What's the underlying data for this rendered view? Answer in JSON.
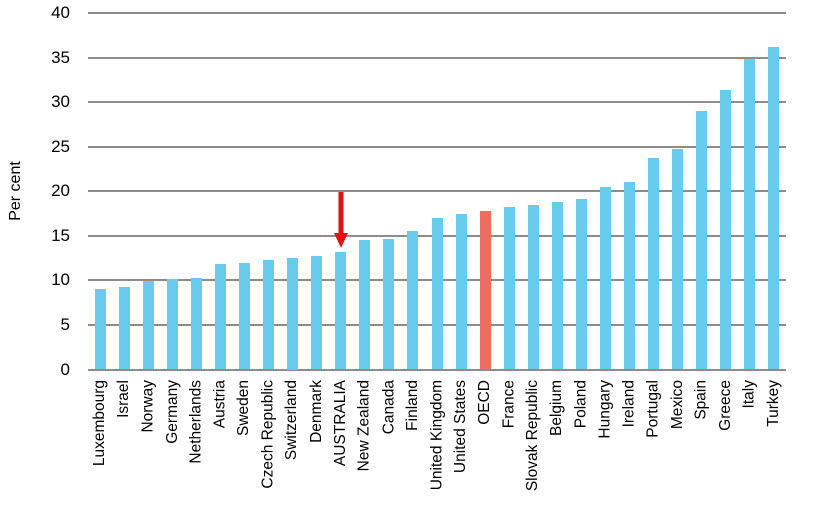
{
  "chart_data": {
    "type": "bar",
    "title": "",
    "xlabel": "",
    "ylabel": "Per cent",
    "ylim": [
      0,
      40
    ],
    "yticks": [
      0,
      5,
      10,
      15,
      20,
      25,
      30,
      35,
      40
    ],
    "grid": "horizontal-gridlines",
    "legend": "none",
    "categories": [
      "Luxembourg",
      "Israel",
      "Norway",
      "Germany",
      "Netherlands",
      "Austria",
      "Sweden",
      "Czech Republic",
      "Switzerland",
      "Denmark",
      "AUSTRALIA",
      "New Zealand",
      "Canada",
      "Finland",
      "United Kingdom",
      "United States",
      "OECD",
      "France",
      "Slovak Republic",
      "Belgium",
      "Poland",
      "Hungary",
      "Ireland",
      "Portugal",
      "Mexico",
      "Spain",
      "Greece",
      "Italy",
      "Turkey"
    ],
    "values": [
      9.0,
      9.3,
      9.9,
      10.2,
      10.3,
      11.9,
      12.0,
      12.3,
      12.5,
      12.7,
      13.2,
      14.5,
      14.6,
      15.6,
      17.0,
      17.5,
      17.8,
      18.3,
      18.5,
      18.8,
      19.1,
      20.5,
      21.0,
      23.7,
      24.8,
      29.0,
      31.4,
      34.9,
      36.2
    ],
    "bar_color": "#67CBEC",
    "highlight": {
      "category": "OECD",
      "color": "#EC6E60"
    },
    "annotation": {
      "type": "down-arrow",
      "target": "AUSTRALIA",
      "color": "#E11212"
    },
    "gridline_color": "#8C8C8C",
    "text_color": "#000000"
  }
}
